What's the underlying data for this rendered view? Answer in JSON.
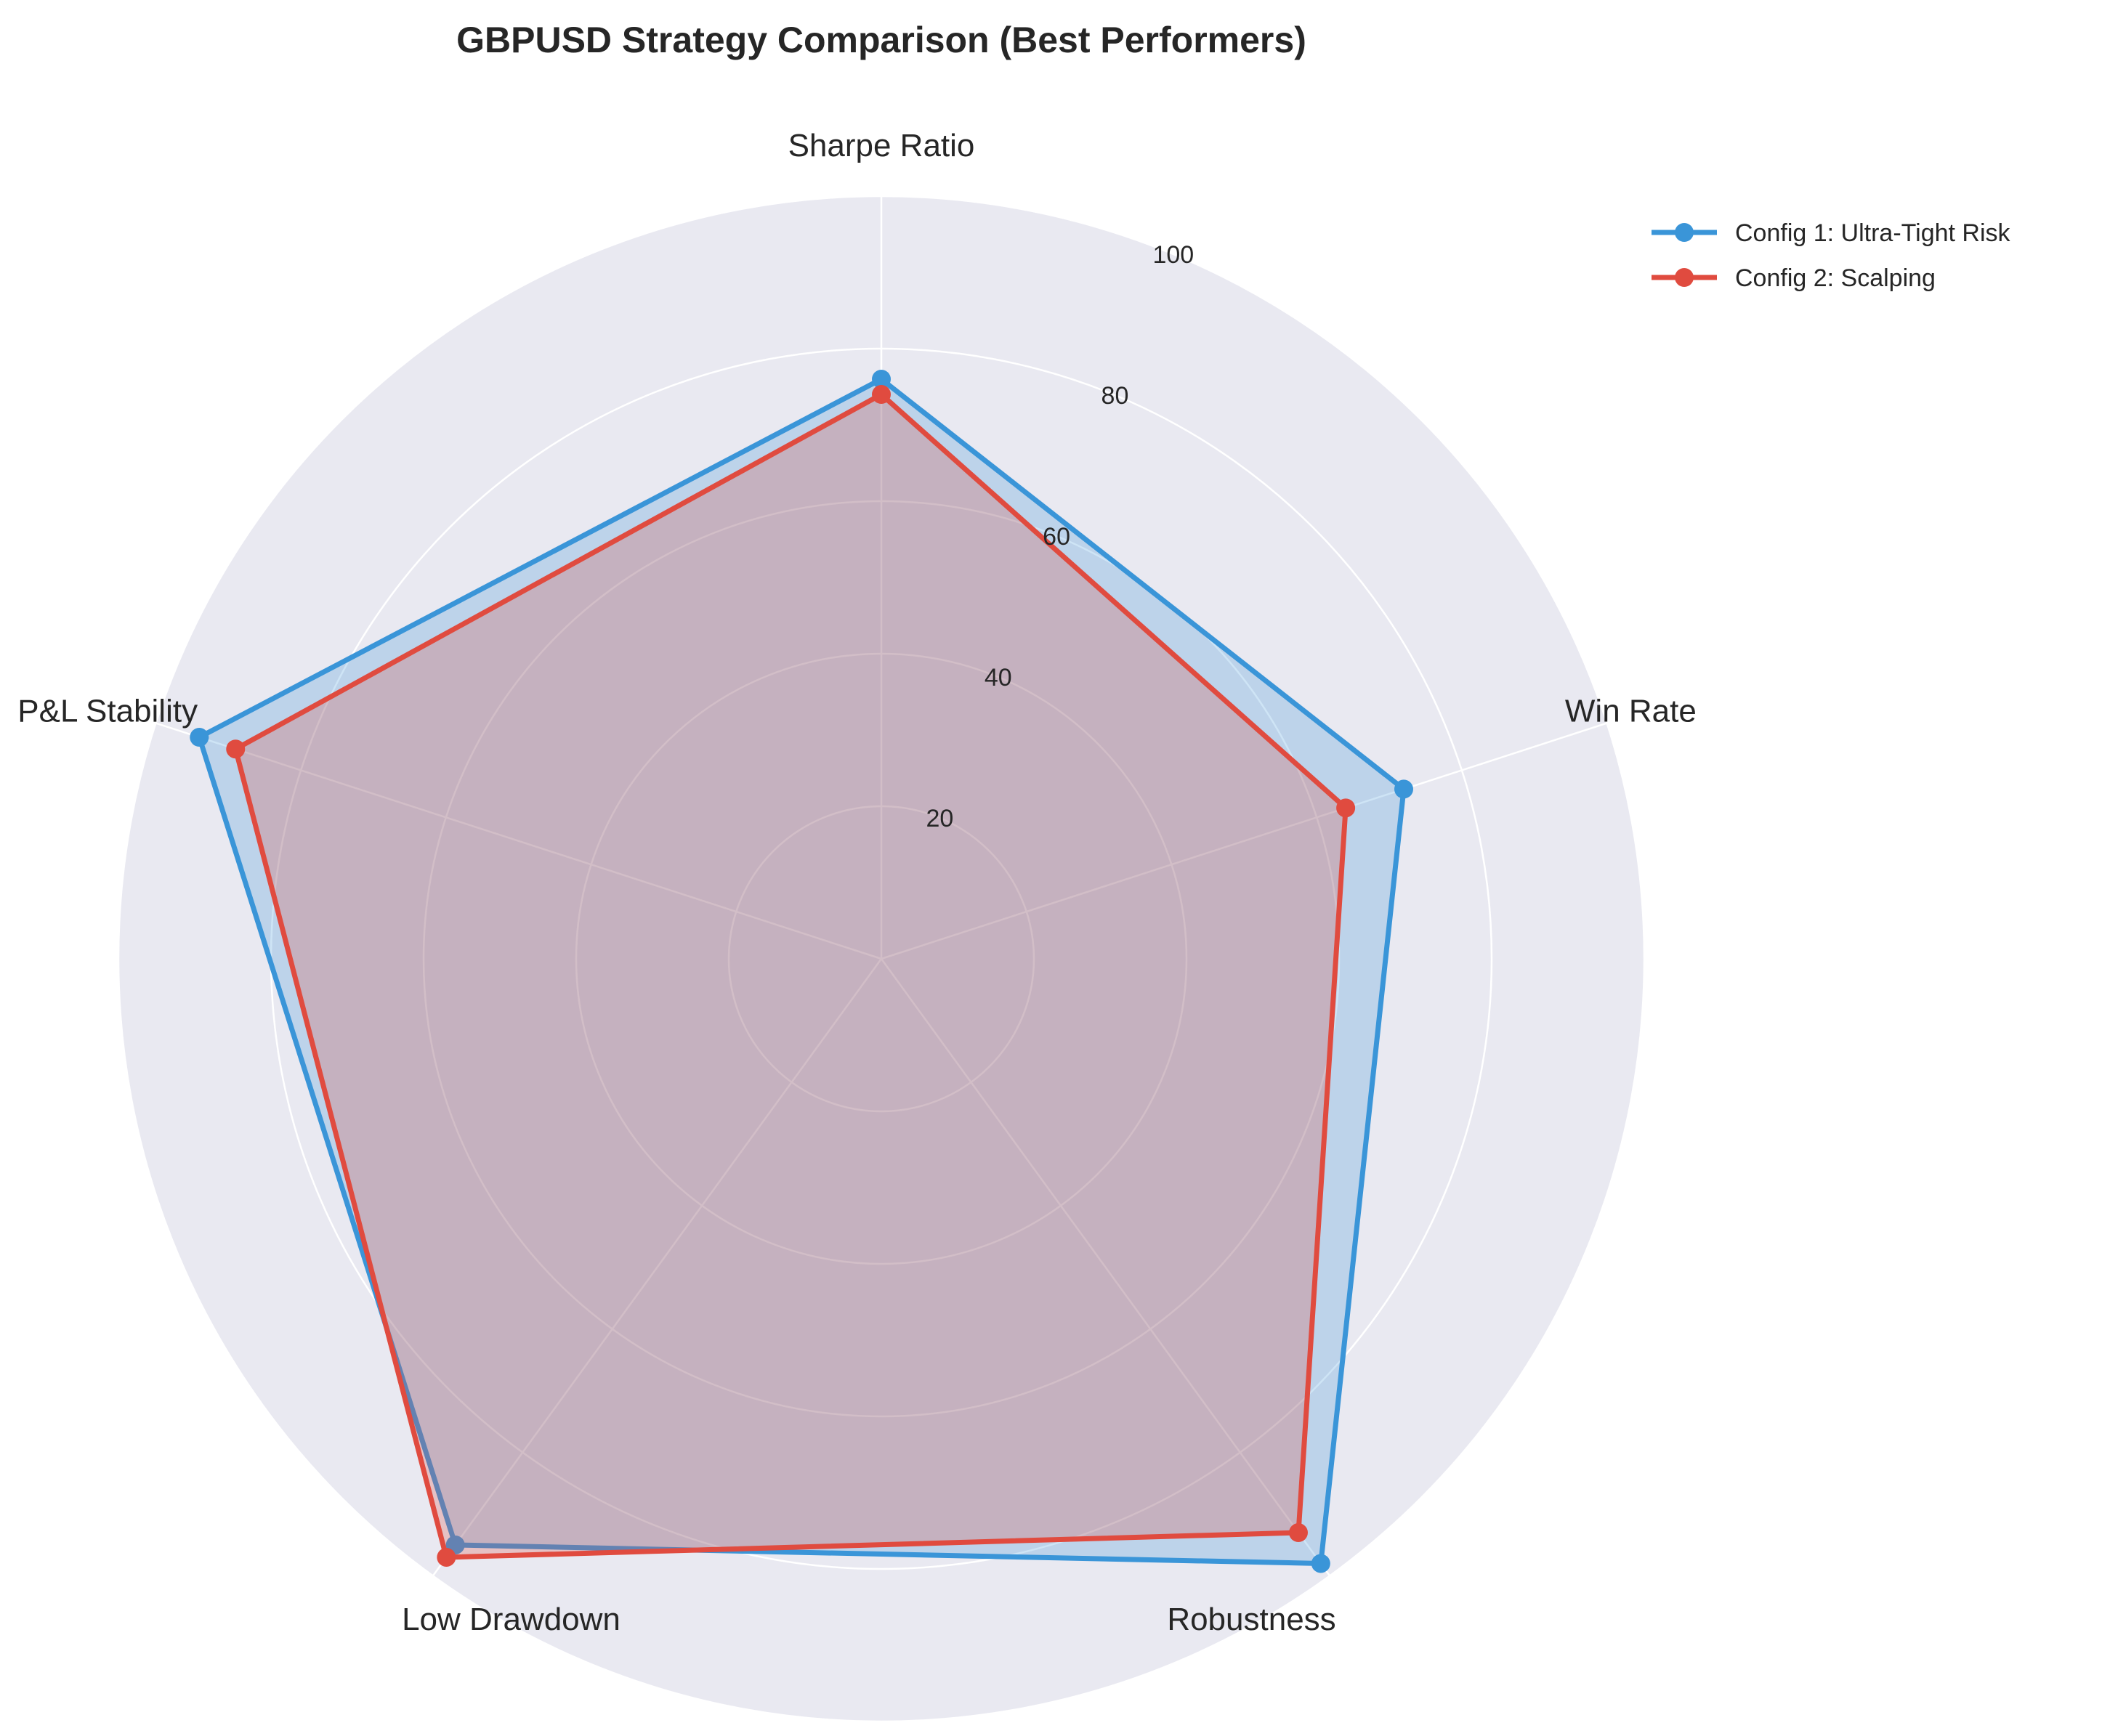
{
  "chart_data": {
    "type": "radar",
    "title": "GBPUSD Strategy Comparison (Best Performers)",
    "categories": [
      "Sharpe Ratio",
      "Win Rate",
      "Robustness",
      "Low Drawdown",
      "P&L Stability"
    ],
    "rlim": [
      0,
      100
    ],
    "rticks": [
      20,
      40,
      60,
      80,
      100
    ],
    "grid": true,
    "legend_position": "top-right",
    "series": [
      {
        "name": "Config 1: Ultra-Tight Risk",
        "values": [
          76,
          72,
          98,
          95,
          94
        ],
        "color": "#3a95d8"
      },
      {
        "name": "Config 2: Scalping",
        "values": [
          74,
          64,
          93,
          97,
          89
        ],
        "color": "#e04b3f"
      }
    ]
  },
  "colors": {
    "polar_background": "#e9e9f1",
    "grid": "#ffffff",
    "text": "#262626"
  }
}
